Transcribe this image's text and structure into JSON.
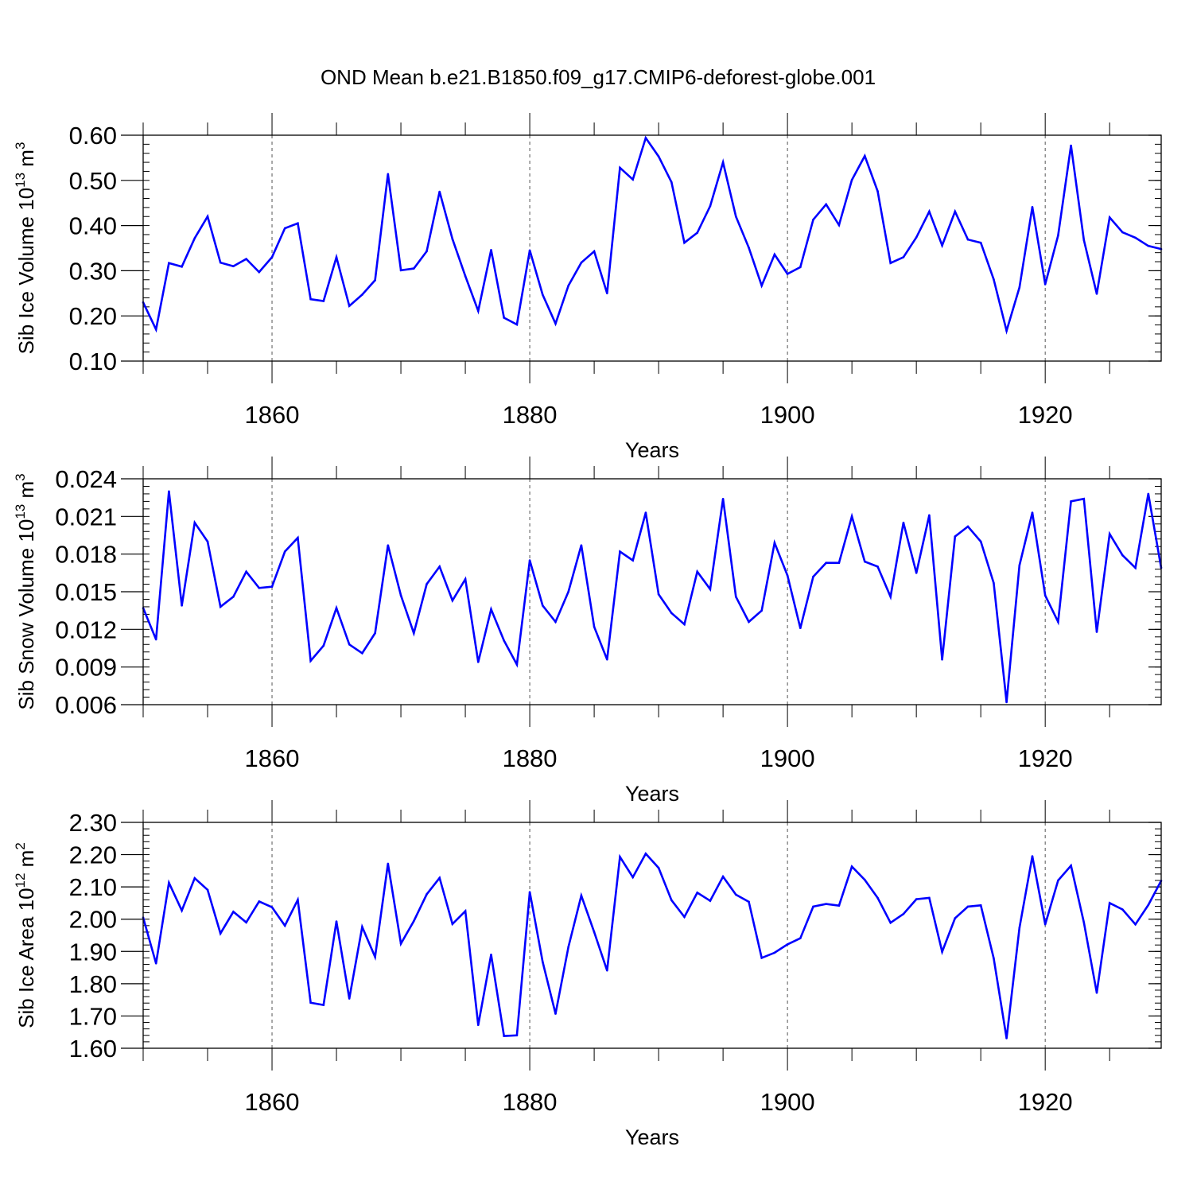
{
  "title": "OND Mean b.e21.B1850.f09_g17.CMIP6-deforest-globe.001",
  "colors": {
    "line": "#0000ff",
    "axis": "#000000",
    "grid": "#555555"
  },
  "chart_data": [
    {
      "type": "line",
      "ylabel": "Sib Ice Volume 10",
      "ylabel_exp": "13",
      "ylabel_unit": " m",
      "ylabel_unit_exp": "3",
      "xlabel": "Years",
      "xlim": [
        1850,
        1929
      ],
      "ylim": [
        0.1,
        0.6
      ],
      "yticks": [
        0.1,
        0.2,
        0.3,
        0.4,
        0.5,
        0.6
      ],
      "ytick_labels": [
        "0.10",
        "0.20",
        "0.30",
        "0.40",
        "0.50",
        "0.60"
      ],
      "yminor_step": 0.02,
      "xticks": [
        1860,
        1880,
        1900,
        1920
      ],
      "xtick_labels": [
        "1860",
        "1880",
        "1900",
        "1920"
      ],
      "x_start": 1850,
      "series": [
        {
          "name": "Sib Ice Volume",
          "values": [
            0.23,
            0.17,
            0.317,
            0.309,
            0.372,
            0.42,
            0.318,
            0.31,
            0.326,
            0.297,
            0.33,
            0.394,
            0.405,
            0.237,
            0.233,
            0.33,
            0.222,
            0.247,
            0.279,
            0.514,
            0.301,
            0.305,
            0.343,
            0.475,
            0.37,
            0.288,
            0.211,
            0.346,
            0.196,
            0.181,
            0.345,
            0.247,
            0.183,
            0.267,
            0.318,
            0.343,
            0.25,
            0.528,
            0.502,
            0.594,
            0.553,
            0.496,
            0.362,
            0.384,
            0.443,
            0.54,
            0.42,
            0.351,
            0.267,
            0.336,
            0.293,
            0.308,
            0.413,
            0.447,
            0.401,
            0.501,
            0.554,
            0.476,
            0.317,
            0.33,
            0.374,
            0.431,
            0.356,
            0.431,
            0.369,
            0.362,
            0.281,
            0.167,
            0.263,
            0.441,
            0.27,
            0.378,
            0.577,
            0.368,
            0.249,
            0.418,
            0.385,
            0.373,
            0.355,
            0.348
          ]
        }
      ]
    },
    {
      "type": "line",
      "ylabel": "Sib Snow Volume 10",
      "ylabel_exp": "13",
      "ylabel_unit": " m",
      "ylabel_unit_exp": "3",
      "xlabel": "Years",
      "xlim": [
        1850,
        1929
      ],
      "ylim": [
        0.006,
        0.024
      ],
      "yticks": [
        0.006,
        0.009,
        0.012,
        0.015,
        0.018,
        0.021,
        0.024
      ],
      "ytick_labels": [
        "0.006",
        "0.009",
        "0.012",
        "0.015",
        "0.018",
        "0.021",
        "0.024"
      ],
      "yminor_step": 0.0006,
      "xticks": [
        1860,
        1880,
        1900,
        1920
      ],
      "xtick_labels": [
        "1860",
        "1880",
        "1900",
        "1920"
      ],
      "x_start": 1850,
      "series": [
        {
          "name": "Sib Snow Volume",
          "values": [
            0.0137,
            0.0112,
            0.023,
            0.0139,
            0.0205,
            0.019,
            0.0138,
            0.0146,
            0.0166,
            0.0153,
            0.0154,
            0.0182,
            0.0193,
            0.0095,
            0.0107,
            0.0137,
            0.0108,
            0.0101,
            0.0117,
            0.0187,
            0.0147,
            0.0117,
            0.0156,
            0.017,
            0.0143,
            0.016,
            0.0094,
            0.0136,
            0.0111,
            0.0092,
            0.0175,
            0.0139,
            0.0126,
            0.015,
            0.0187,
            0.0122,
            0.0096,
            0.0182,
            0.0175,
            0.0213,
            0.0148,
            0.0133,
            0.0124,
            0.0166,
            0.0152,
            0.0224,
            0.0146,
            0.0126,
            0.0135,
            0.0189,
            0.0163,
            0.0121,
            0.0162,
            0.0173,
            0.0173,
            0.021,
            0.0174,
            0.017,
            0.0146,
            0.0205,
            0.0165,
            0.0211,
            0.0096,
            0.0194,
            0.0202,
            0.019,
            0.0157,
            0.0062,
            0.0171,
            0.0213,
            0.0147,
            0.0126,
            0.0222,
            0.0224,
            0.0118,
            0.0196,
            0.0179,
            0.0169,
            0.0228,
            0.0169
          ]
        }
      ]
    },
    {
      "type": "line",
      "ylabel": "Sib Ice Area 10",
      "ylabel_exp": "12",
      "ylabel_unit": " m",
      "ylabel_unit_exp": "2",
      "xlabel": "Years",
      "xlim": [
        1850,
        1929
      ],
      "ylim": [
        1.6,
        2.3
      ],
      "yticks": [
        1.6,
        1.7,
        1.8,
        1.9,
        2.0,
        2.1,
        2.2,
        2.3
      ],
      "ytick_labels": [
        "1.60",
        "1.70",
        "1.80",
        "1.90",
        "2.00",
        "2.10",
        "2.20",
        "2.30"
      ],
      "yminor_step": 0.02,
      "xticks": [
        1860,
        1880,
        1900,
        1920
      ],
      "xtick_labels": [
        "1860",
        "1880",
        "1900",
        "1920"
      ],
      "x_start": 1850,
      "series": [
        {
          "name": "Sib Ice Area",
          "values": [
            2.005,
            1.863,
            2.113,
            2.027,
            2.127,
            2.091,
            1.956,
            2.023,
            1.99,
            2.055,
            2.037,
            1.98,
            2.06,
            1.741,
            1.734,
            1.993,
            1.754,
            1.976,
            1.883,
            2.172,
            1.924,
            1.994,
            2.077,
            2.128,
            1.985,
            2.025,
            1.672,
            1.89,
            1.638,
            1.64,
            2.084,
            1.868,
            1.707,
            1.914,
            2.073,
            1.96,
            1.841,
            2.193,
            2.13,
            2.203,
            2.159,
            2.059,
            2.007,
            2.082,
            2.057,
            2.132,
            2.076,
            2.054,
            1.88,
            1.896,
            1.922,
            1.941,
            2.039,
            2.047,
            2.042,
            2.163,
            2.122,
            2.066,
            1.989,
            2.016,
            2.062,
            2.066,
            1.899,
            2.003,
            2.039,
            2.043,
            1.879,
            1.631,
            1.973,
            2.195,
            1.984,
            2.12,
            2.166,
            1.99,
            1.772,
            2.05,
            2.03,
            1.984,
            2.044,
            2.119
          ]
        }
      ]
    }
  ]
}
